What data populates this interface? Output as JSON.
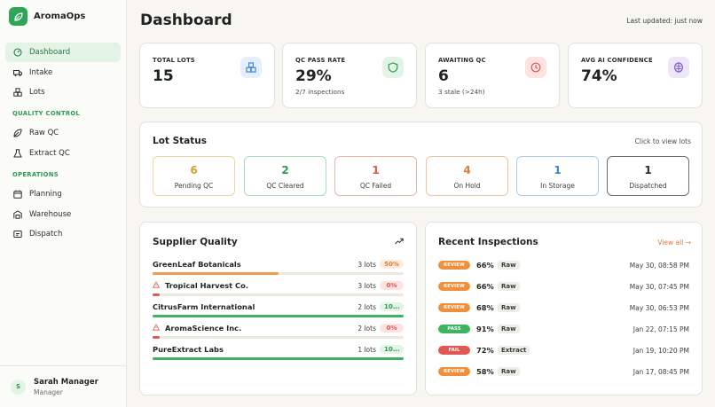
{
  "app": {
    "name": "AromaOps"
  },
  "nav": {
    "items": [
      {
        "label": "Dashboard",
        "icon": "dashboard-icon"
      },
      {
        "label": "Intake",
        "icon": "truck-icon"
      },
      {
        "label": "Lots",
        "icon": "boxes-icon"
      }
    ],
    "quality_section": "QUALITY CONTROL",
    "quality_items": [
      {
        "label": "Raw QC",
        "icon": "leaf-icon"
      },
      {
        "label": "Extract QC",
        "icon": "flask-icon"
      }
    ],
    "operations_section": "OPERATIONS",
    "operations_items": [
      {
        "label": "Planning",
        "icon": "calendar-icon"
      },
      {
        "label": "Warehouse",
        "icon": "warehouse-icon"
      },
      {
        "label": "Dispatch",
        "icon": "package-icon"
      }
    ]
  },
  "user": {
    "initial": "S",
    "name": "Sarah Manager",
    "role": "Manager"
  },
  "header": {
    "title": "Dashboard",
    "updated": "Last updated: just now"
  },
  "stats": [
    {
      "label": "TOTAL LOTS",
      "value": "15",
      "sub": "",
      "icon": "boxes-icon"
    },
    {
      "label": "QC PASS RATE",
      "value": "29%",
      "sub": "2/7 inspections",
      "icon": "shield-icon"
    },
    {
      "label": "AWAITING QC",
      "value": "6",
      "sub": "3 stale (>24h)",
      "icon": "clock-icon"
    },
    {
      "label": "AVG AI CONFIDENCE",
      "value": "74%",
      "sub": "",
      "icon": "brain-icon"
    }
  ],
  "lot_status": {
    "title": "Lot Status",
    "hint": "Click to view lots",
    "items": [
      {
        "count": "6",
        "label": "Pending QC",
        "color": "#d6a12e",
        "border": "#ecd89c"
      },
      {
        "count": "2",
        "label": "QC Cleared",
        "color": "#2e9a52",
        "border": "#a9ddb6"
      },
      {
        "count": "1",
        "label": "QC Failed",
        "color": "#e0584f",
        "border": "#f0b4ae"
      },
      {
        "count": "4",
        "label": "On Hold",
        "color": "#e07c35",
        "border": "#efc59e"
      },
      {
        "count": "1",
        "label": "In Storage",
        "color": "#3b86d4",
        "border": "#a8cdf0"
      },
      {
        "count": "1",
        "label": "Dispatched",
        "color": "#2a2e2a",
        "border": "#6b6f69"
      }
    ]
  },
  "supplier_quality": {
    "title": "Supplier Quality",
    "items": [
      {
        "name": "GreenLeaf Botanicals",
        "lots": "3 lots",
        "pct": "50%",
        "fill": 0.5,
        "warn": false,
        "color": "#ef9a4e",
        "pct_bg": "#fdecdc",
        "pct_color": "#e07c35"
      },
      {
        "name": "Tropical Harvest Co.",
        "lots": "3 lots",
        "pct": "0%",
        "fill": 0.03,
        "warn": true,
        "color": "#e0584f",
        "pct_bg": "#fde3e1",
        "pct_color": "#e0584f"
      },
      {
        "name": "CitrusFarm International",
        "lots": "2 lots",
        "pct": "10...",
        "fill": 1.0,
        "warn": false,
        "color": "#3fb35f",
        "pct_bg": "#e1f4e5",
        "pct_color": "#2e9a52"
      },
      {
        "name": "AromaScience Inc.",
        "lots": "2 lots",
        "pct": "0%",
        "fill": 0.03,
        "warn": true,
        "color": "#e0584f",
        "pct_bg": "#fde3e1",
        "pct_color": "#e0584f"
      },
      {
        "name": "PureExtract Labs",
        "lots": "1 lots",
        "pct": "10...",
        "fill": 1.0,
        "warn": false,
        "color": "#3fb35f",
        "pct_bg": "#e1f4e5",
        "pct_color": "#2e9a52"
      }
    ]
  },
  "recent_inspections": {
    "title": "Recent Inspections",
    "view_all": "View all →",
    "items": [
      {
        "status": "REVIEW",
        "pct": "66%",
        "type": "Raw",
        "date": "May 30, 08:58 PM",
        "color": "#ef8f3a"
      },
      {
        "status": "REVIEW",
        "pct": "66%",
        "type": "Raw",
        "date": "May 30, 07:45 PM",
        "color": "#ef8f3a"
      },
      {
        "status": "REVIEW",
        "pct": "68%",
        "type": "Raw",
        "date": "May 30, 06:53 PM",
        "color": "#ef8f3a"
      },
      {
        "status": "PASS",
        "pct": "91%",
        "type": "Raw",
        "date": "Jan 22, 07:15 PM",
        "color": "#3fb35f"
      },
      {
        "status": "FAIL",
        "pct": "72%",
        "type": "Extract",
        "date": "Jan 19, 10:20 PM",
        "color": "#e0584f"
      },
      {
        "status": "REVIEW",
        "pct": "58%",
        "type": "Raw",
        "date": "Jan 17, 08:45 PM",
        "color": "#ef8f3a"
      }
    ]
  }
}
